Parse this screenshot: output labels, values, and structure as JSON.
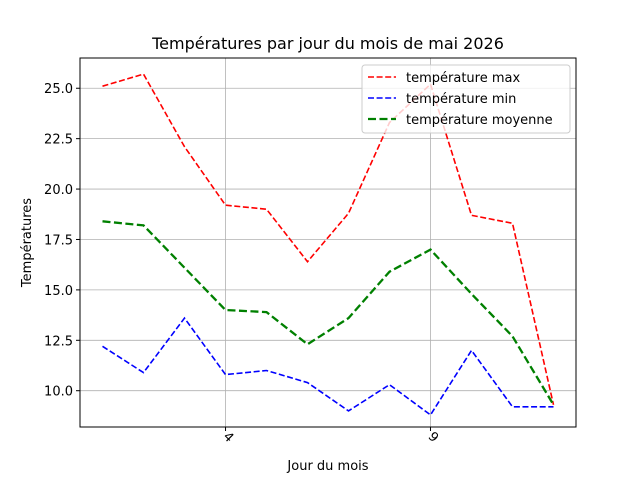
{
  "chart_data": {
    "type": "line",
    "title": "Températures par jour du mois de mai 2026",
    "xlabel": "Jour du mois",
    "ylabel": "Températures",
    "x": [
      1,
      2,
      3,
      4,
      5,
      6,
      7,
      8,
      9,
      10,
      11,
      12
    ],
    "xlim": [
      0.45,
      12.55
    ],
    "ylim": [
      8.2,
      26.5
    ],
    "xticks": [
      4,
      9
    ],
    "yticks": [
      10.0,
      12.5,
      15.0,
      17.5,
      20.0,
      22.5,
      25.0
    ],
    "ytick_labels": [
      "10.0",
      "12.5",
      "15.0",
      "17.5",
      "20.0",
      "22.5",
      "25.0"
    ],
    "grid": true,
    "legend_position": "top-right",
    "series": [
      {
        "name": "température max",
        "color": "#ff0000",
        "style": "dashed",
        "values": [
          25.1,
          25.7,
          22.1,
          19.2,
          19.0,
          16.4,
          18.8,
          23.3,
          25.2,
          18.7,
          18.3,
          9.3
        ]
      },
      {
        "name": "température min",
        "color": "#0000ff",
        "style": "dashed",
        "values": [
          12.2,
          10.9,
          13.6,
          10.8,
          11.0,
          10.4,
          9.0,
          10.3,
          8.8,
          12.0,
          9.2,
          9.2
        ]
      },
      {
        "name": "température moyenne",
        "color": "#008000",
        "style": "dashed-thick",
        "values": [
          18.4,
          18.2,
          16.1,
          14.0,
          13.9,
          12.3,
          13.6,
          15.9,
          17.0,
          14.8,
          12.7,
          9.3
        ]
      }
    ]
  }
}
